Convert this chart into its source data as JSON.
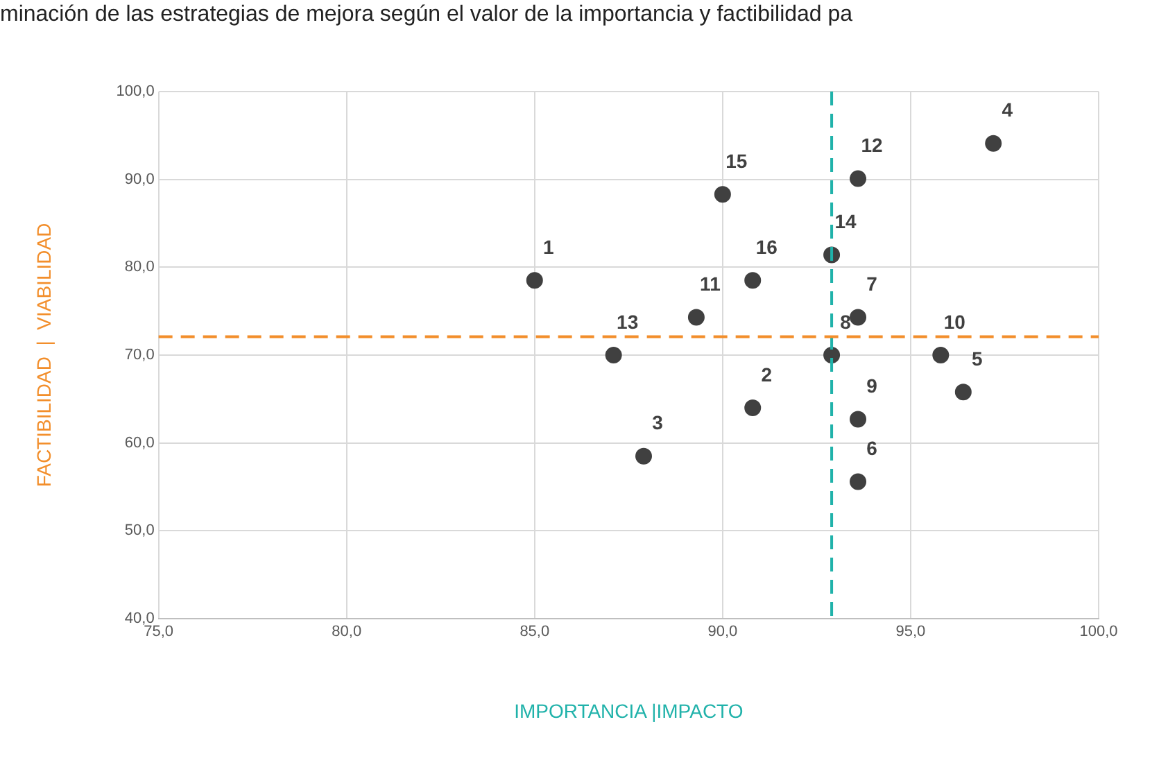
{
  "chart_data": {
    "type": "scatter",
    "title": "minación de las estrategias de mejora según el valor de la importancia y factibilidad pa",
    "xlabel": "IMPORTANCIA |IMPACTO",
    "ylabel": "FACTIBILIDAD  |  VIABILIDAD",
    "x": [
      85.0,
      90.8,
      87.9,
      97.2,
      96.4,
      93.6,
      93.6,
      92.9,
      93.6,
      95.8,
      89.3,
      93.6,
      87.1,
      92.9,
      90.0,
      90.8
    ],
    "series": [
      {
        "color": "#404040",
        "values": [
          78.5,
          64.0,
          58.5,
          94.1,
          65.8,
          55.6,
          74.3,
          70.0,
          62.7,
          70.0,
          74.3,
          90.1,
          70.0,
          81.4,
          88.3,
          78.5
        ]
      }
    ],
    "xlim": [
      75,
      100
    ],
    "xticks": [
      {
        "value": 75,
        "label": "75,0"
      },
      {
        "value": 80,
        "label": "80,0"
      },
      {
        "value": 85,
        "label": "85,0"
      },
      {
        "value": 90,
        "label": "90,0"
      },
      {
        "value": 95,
        "label": "95,0"
      },
      {
        "value": 100,
        "label": "100,0"
      }
    ],
    "ylim": [
      40,
      100
    ],
    "yticks": [
      {
        "value": 40,
        "label": "40,0"
      },
      {
        "value": 50,
        "label": "50,0"
      },
      {
        "value": 60,
        "label": "60,0"
      },
      {
        "value": 70,
        "label": "70,0"
      },
      {
        "value": 80,
        "label": "80,0"
      },
      {
        "value": 90,
        "label": "90,0"
      },
      {
        "value": 100,
        "label": "100,0"
      }
    ],
    "grid": true,
    "marker": "circle",
    "legend": false,
    "ref_lines": [
      {
        "axis": "x",
        "value": 92.9,
        "color": "#20b2aa",
        "line_style": "dashed"
      },
      {
        "axis": "y",
        "value": 72.1,
        "color": "#f28e2b",
        "line_style": "dashed"
      }
    ],
    "annotations": [
      {
        "text": "1",
        "x": 85.0,
        "y": 78.5
      },
      {
        "text": "2",
        "x": 90.8,
        "y": 64.0
      },
      {
        "text": "3",
        "x": 87.9,
        "y": 58.5
      },
      {
        "text": "4",
        "x": 97.2,
        "y": 94.1
      },
      {
        "text": "5",
        "x": 96.4,
        "y": 65.8
      },
      {
        "text": "6",
        "x": 93.6,
        "y": 55.6
      },
      {
        "text": "7",
        "x": 93.6,
        "y": 74.3
      },
      {
        "text": "8",
        "x": 92.9,
        "y": 70.0
      },
      {
        "text": "9",
        "x": 93.6,
        "y": 62.7
      },
      {
        "text": "10",
        "x": 95.8,
        "y": 70.0
      },
      {
        "text": "11",
        "x": 89.3,
        "y": 74.3
      },
      {
        "text": "12",
        "x": 93.6,
        "y": 90.1
      },
      {
        "text": "13",
        "x": 87.1,
        "y": 70.0
      },
      {
        "text": "14",
        "x": 92.9,
        "y": 81.4
      },
      {
        "text": "15",
        "x": 90.0,
        "y": 88.3
      },
      {
        "text": "16",
        "x": 90.8,
        "y": 78.5
      }
    ]
  }
}
